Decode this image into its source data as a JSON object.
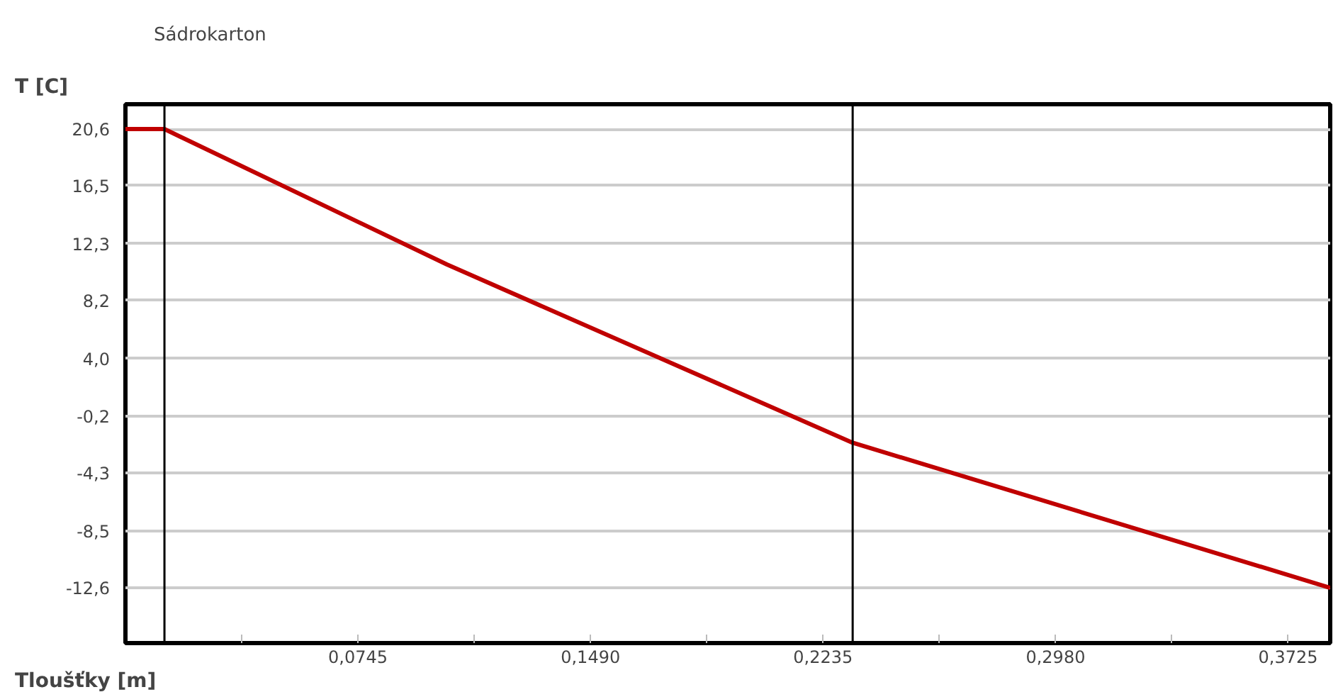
{
  "chart_data": {
    "type": "line",
    "xlabel": "Tloušťky [m]",
    "ylabel": "T [C]",
    "x": [
      0,
      0.0125,
      0.103,
      0.233,
      0.386
    ],
    "series": [
      {
        "color": "#c00000",
        "values": [
          20.6,
          20.6,
          10.8,
          -2.1,
          -12.6
        ]
      }
    ],
    "xlim": [
      0,
      0.386
    ],
    "ylim": [
      -16.6,
      22.4
    ],
    "xticks": [
      {
        "value": 0.03725,
        "label": null
      },
      {
        "value": 0.0745,
        "label": "0,0745"
      },
      {
        "value": 0.11175,
        "label": null
      },
      {
        "value": 0.149,
        "label": "0,1490"
      },
      {
        "value": 0.18625,
        "label": null
      },
      {
        "value": 0.2235,
        "label": "0,2235"
      },
      {
        "value": 0.26075,
        "label": null
      },
      {
        "value": 0.298,
        "label": "0,2980"
      },
      {
        "value": 0.33525,
        "label": null
      },
      {
        "value": 0.3725,
        "label": "0,3725"
      }
    ],
    "yticks": [
      {
        "value": 20.6,
        "label": "20,6"
      },
      {
        "value": 16.5,
        "label": "16,5"
      },
      {
        "value": 12.3,
        "label": "12,3"
      },
      {
        "value": 8.2,
        "label": "8,2"
      },
      {
        "value": 4.0,
        "label": "4,0"
      },
      {
        "value": -0.2,
        "label": "-0,2"
      },
      {
        "value": -4.3,
        "label": "-4,3"
      },
      {
        "value": -8.5,
        "label": "-8,5"
      },
      {
        "value": -12.6,
        "label": "-12,6"
      }
    ],
    "ref_lines": [
      {
        "axis": "x",
        "value": 0.0125,
        "color": "#000000"
      },
      {
        "axis": "x",
        "value": 0.233,
        "color": "#000000"
      }
    ],
    "annotations": [
      "Sádrokarton"
    ],
    "grid": "y",
    "marker": "none",
    "line_style": "solid"
  }
}
